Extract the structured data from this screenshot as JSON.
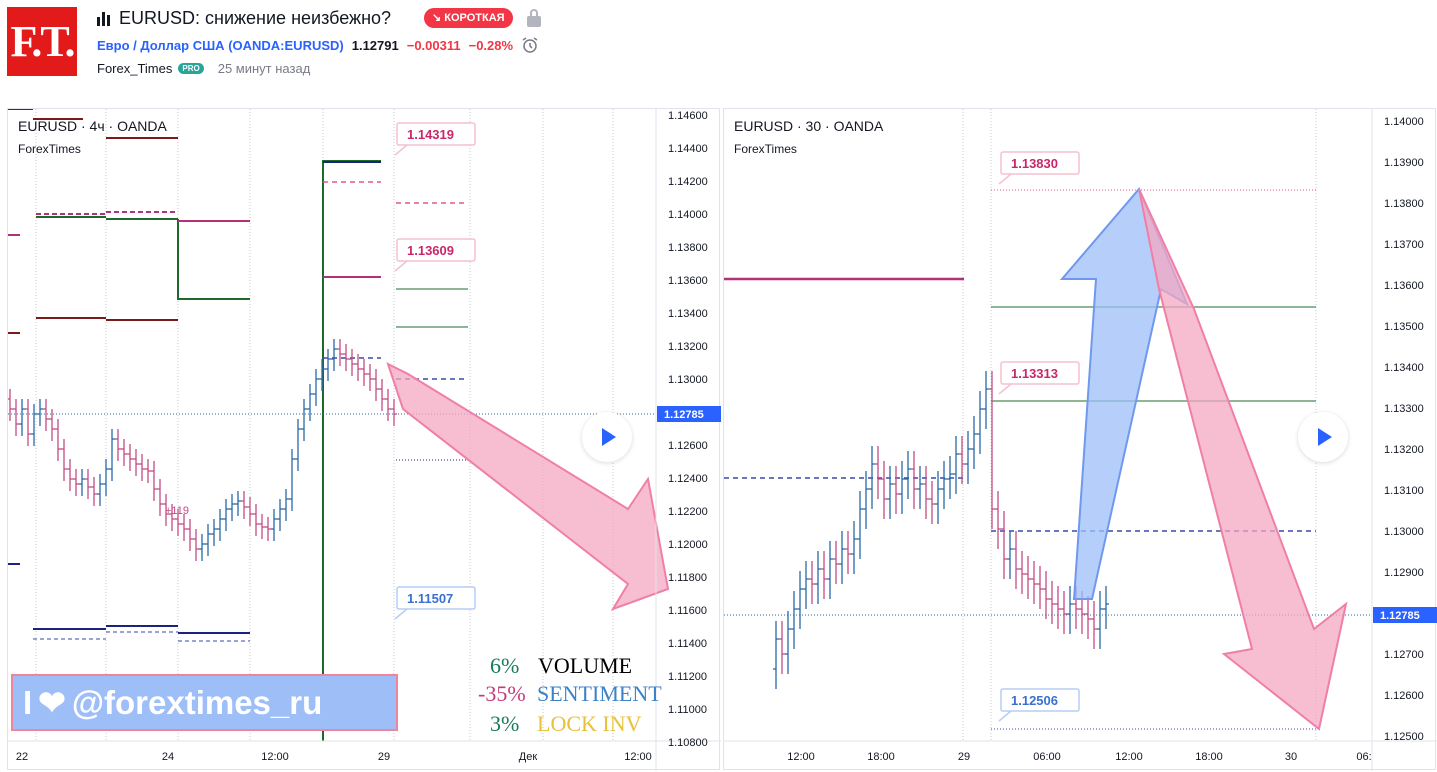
{
  "header": {
    "logo_text": "F.T.",
    "title": "EURUSD: снижение неизбежно?",
    "badge": "↘ КОРОТКАЯ",
    "symbol_name": "Евро / Доллар США",
    "symbol_code": "(OANDA:EURUSD)",
    "price": "1.12791",
    "change": "−0.00311",
    "change_pct": "−0.28%",
    "author": "Forex_Times",
    "author_badge": "PRO",
    "time_ago": "25 минут назад"
  },
  "left_chart": {
    "title": "EURUSD · 4ч · OANDA",
    "watermark": "ForexTimes",
    "price_axis": [
      "1.14600",
      "1.14400",
      "1.14200",
      "1.14000",
      "1.13800",
      "1.13600",
      "1.13400",
      "1.13200",
      "1.13000",
      "1.12800",
      "1.12600",
      "1.12400",
      "1.12200",
      "1.12000",
      "1.11800",
      "1.11600",
      "1.11400",
      "1.11200",
      "1.11000",
      "1.10800"
    ],
    "time_axis": [
      "22",
      "24",
      "12:00",
      "29",
      "Дек",
      "12:00"
    ],
    "last_price": "1.12785",
    "labels": [
      "1.14319",
      "1.13609",
      "1.11507"
    ],
    "small_label": "+119"
  },
  "right_chart": {
    "title": "EURUSD · 30 · OANDA",
    "watermark": "ForexTimes",
    "price_axis": [
      "1.14000",
      "1.13900",
      "1.13800",
      "1.13700",
      "1.13600",
      "1.13500",
      "1.13400",
      "1.13300",
      "1.13200",
      "1.13100",
      "1.13000",
      "1.12900",
      "1.12800",
      "1.12700",
      "1.12600",
      "1.12500"
    ],
    "time_axis": [
      "12:00",
      "18:00",
      "29",
      "06:00",
      "12:00",
      "18:00",
      "30",
      "06:"
    ],
    "last_price": "1.12785",
    "labels": [
      "1.13830",
      "1.13313",
      "1.12506"
    ]
  },
  "promo": {
    "left": "I",
    "handle": "@forextimes_ru"
  },
  "stats": [
    {
      "pct": "6%",
      "label": "VOLUME",
      "pct_color": "#1a7a5a",
      "label_color": "#000000"
    },
    {
      "pct": "-35%",
      "label": "SENTIMENT",
      "pct_color": "#c23a7a",
      "label_color": "#3b82c8"
    },
    {
      "pct": "3%",
      "label": "LOCK INV",
      "pct_color": "#1a7a5a",
      "label_color": "#e8c13a"
    }
  ],
  "colors": {
    "bull": "#2a6aa6",
    "bear": "#c44a84",
    "accent": "#2962ff",
    "short": "#f23645"
  }
}
